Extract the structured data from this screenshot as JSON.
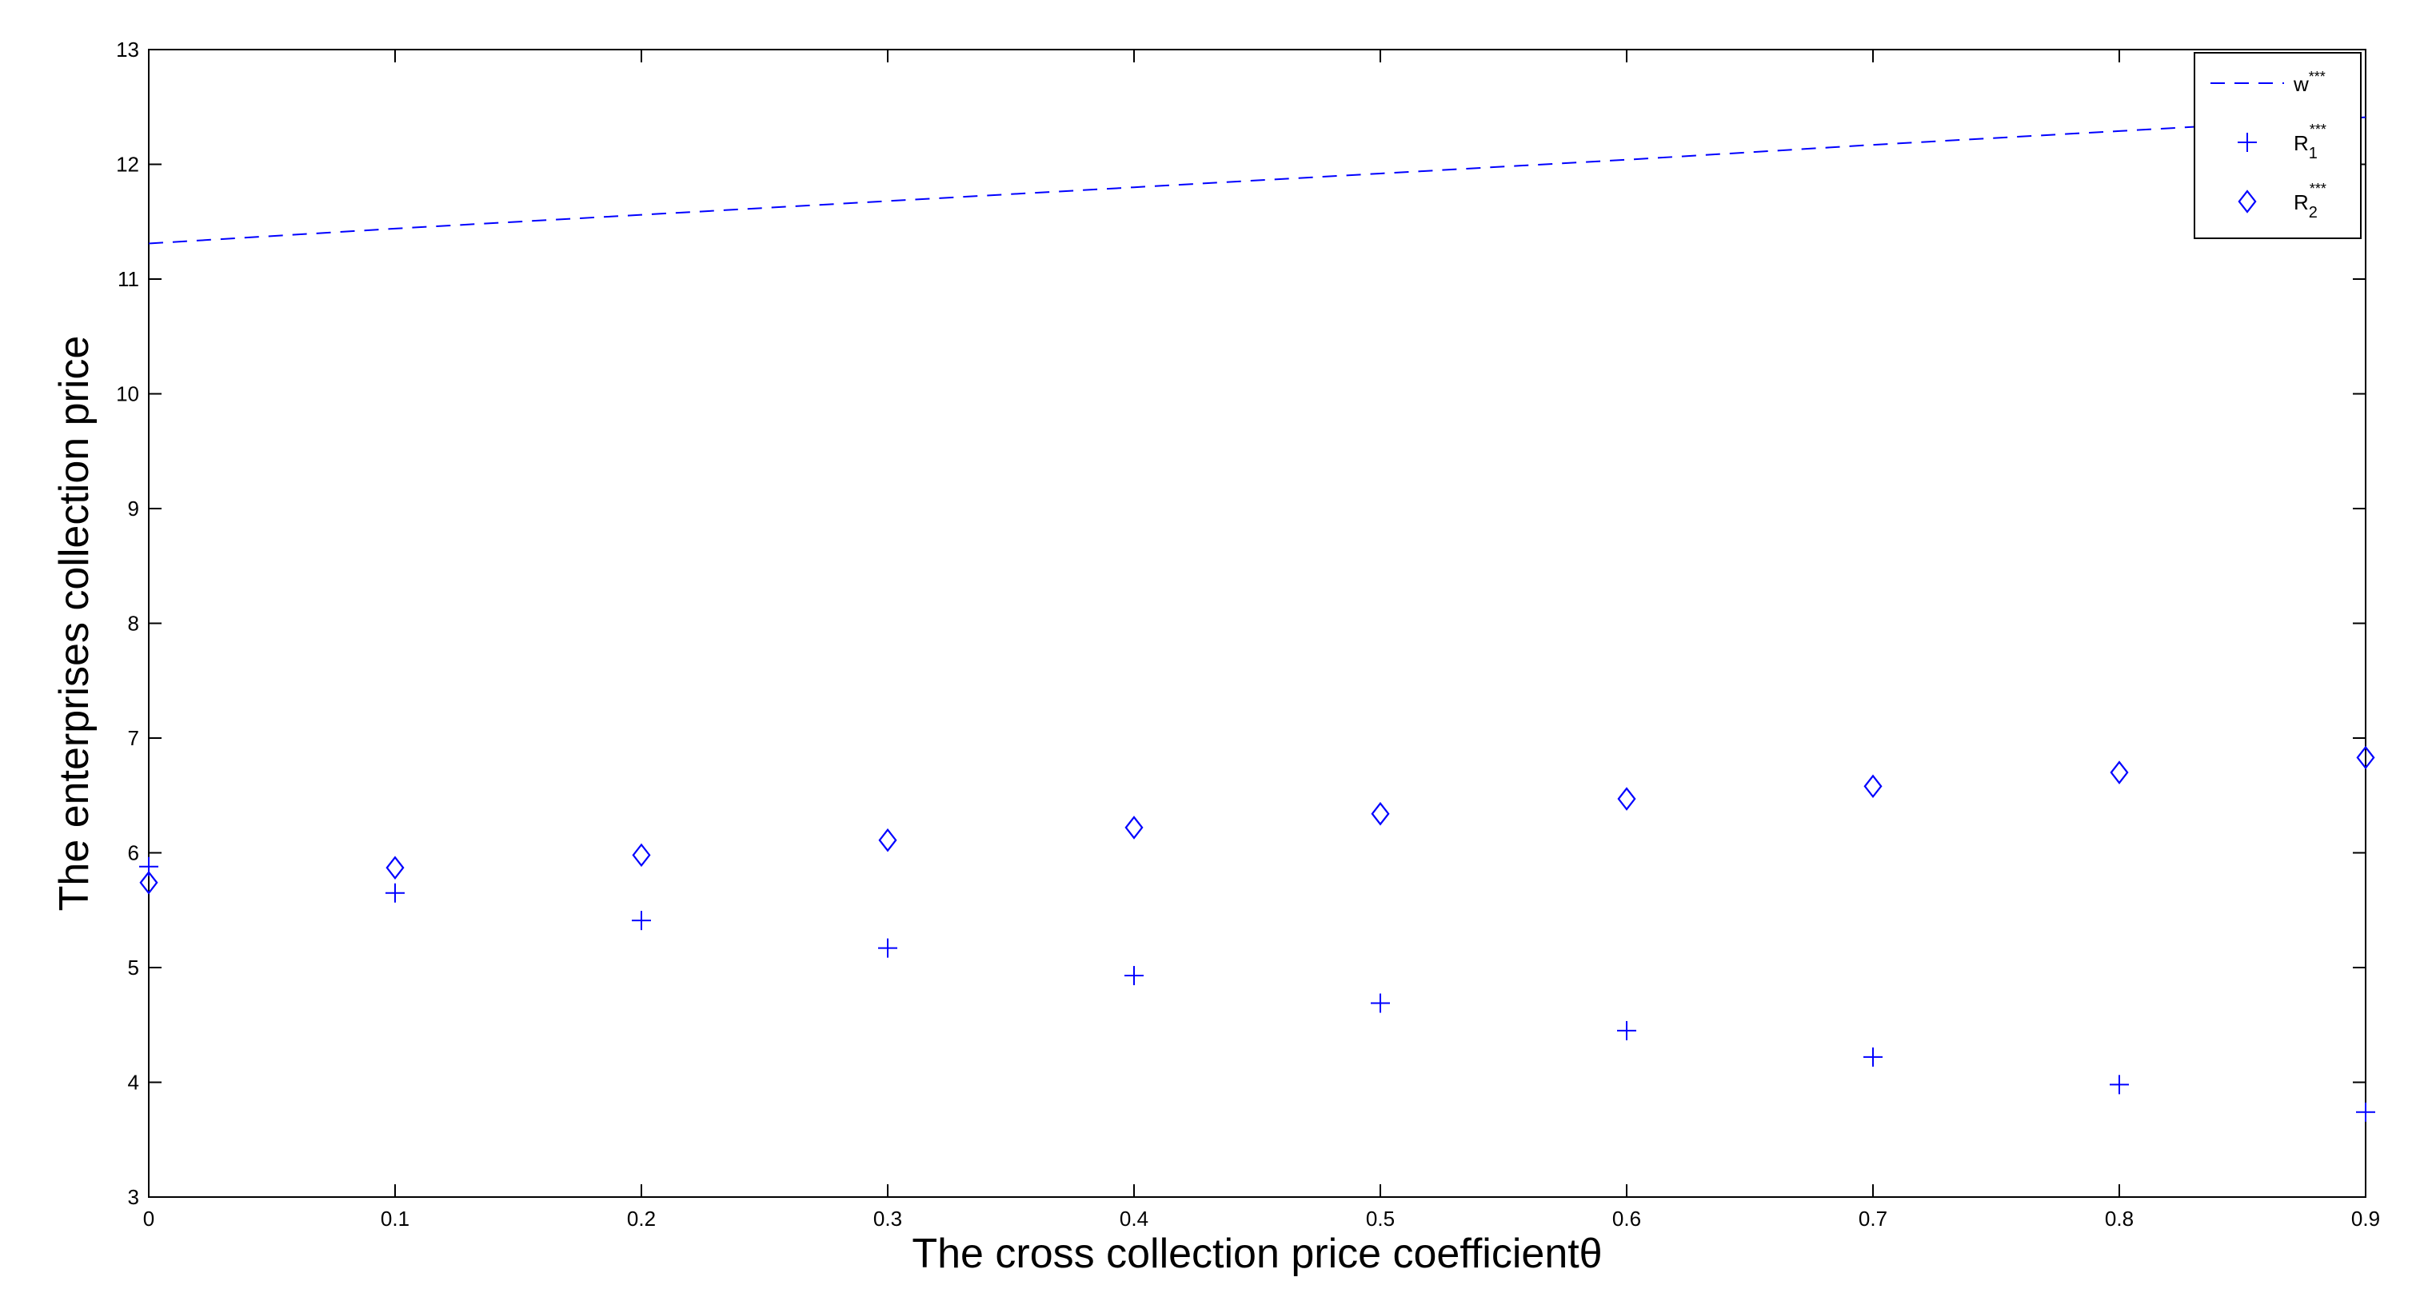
{
  "chart_data": {
    "type": "scatter",
    "xlabel": "The cross collection price coefficientθ",
    "ylabel": "The enterprises collection price",
    "xlim": [
      0,
      0.9
    ],
    "ylim": [
      3,
      13
    ],
    "x_ticks": [
      "0",
      "0.1",
      "0.2",
      "0.3",
      "0.4",
      "0.5",
      "0.6",
      "0.7",
      "0.8",
      "0.9"
    ],
    "y_ticks": [
      "3",
      "4",
      "5",
      "6",
      "7",
      "8",
      "9",
      "10",
      "11",
      "12",
      "13"
    ],
    "grid": false,
    "legend_position": "top-right",
    "color": "#0000ff",
    "x": [
      0,
      0.1,
      0.2,
      0.3,
      0.4,
      0.5,
      0.6,
      0.7,
      0.8,
      0.9
    ],
    "series": [
      {
        "name": "w***",
        "legend_base": "w",
        "legend_sup": "***",
        "legend_sub": "",
        "style": "dashed-line",
        "values": [
          11.31,
          11.44,
          11.56,
          11.68,
          11.8,
          11.92,
          12.04,
          12.17,
          12.29,
          12.41
        ]
      },
      {
        "name": "R1***",
        "legend_base": "R",
        "legend_sup": "***",
        "legend_sub": "1",
        "style": "plus-marker",
        "values": [
          5.88,
          5.65,
          5.41,
          5.17,
          4.93,
          4.69,
          4.45,
          4.22,
          3.98,
          3.74
        ]
      },
      {
        "name": "R2***",
        "legend_base": "R",
        "legend_sup": "***",
        "legend_sub": "2",
        "style": "diamond-marker",
        "values": [
          5.74,
          5.87,
          5.98,
          6.11,
          6.22,
          6.34,
          6.47,
          6.58,
          6.7,
          6.83
        ]
      }
    ]
  }
}
